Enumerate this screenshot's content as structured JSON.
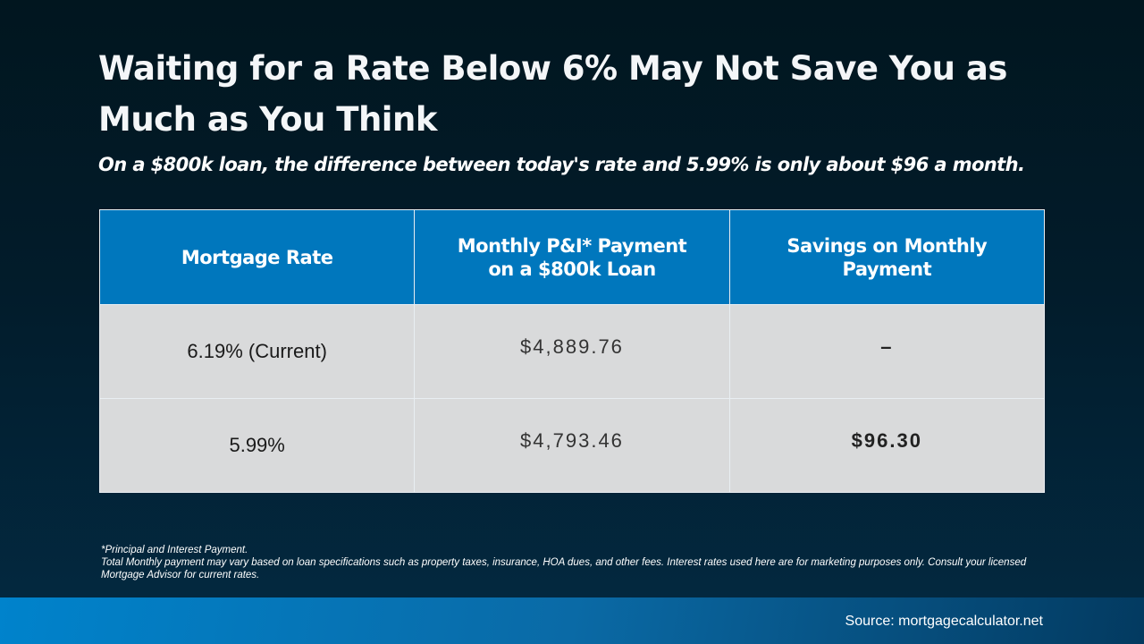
{
  "title": "Waiting for a Rate Below 6% May Not Save You as Much as You Think",
  "subtitle": "On a $800k loan, the difference between today's rate and 5.99% is only about $96 a month.",
  "table": {
    "headers": [
      "Mortgage Rate",
      "Monthly P&I* Payment on a $800k Loan",
      "Savings on Monthly Payment"
    ],
    "rows": [
      {
        "rate": "6.19% (Current)",
        "payment": "$4,889.76",
        "savings": "–"
      },
      {
        "rate": "5.99%",
        "payment": "$4,793.46",
        "savings": "$96.30"
      }
    ]
  },
  "footnote": {
    "line1": "*Principal and Interest Payment.",
    "line2": "Total Monthly payment may vary based on loan specifications such as property taxes, insurance, HOA dues, and other fees. Interest rates used here are for marketing purposes only. Consult your licensed Mortgage Advisor for current rates."
  },
  "source": "Source: mortgagecalculator.net",
  "colors": {
    "header": "#0077bd",
    "cell": "#d9dadb",
    "background": "#021c2b"
  }
}
